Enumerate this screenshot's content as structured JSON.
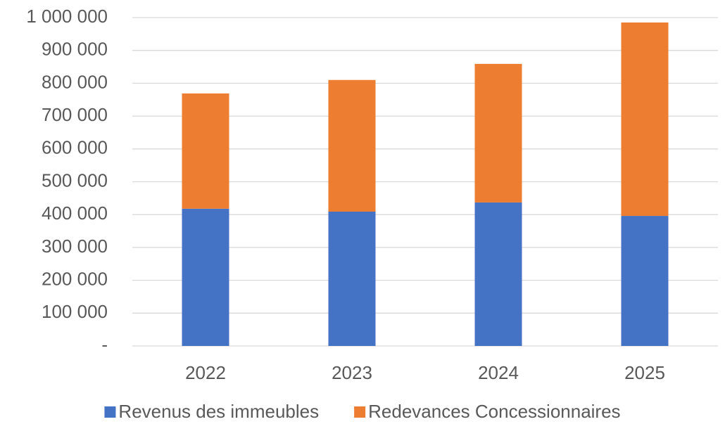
{
  "chart_data": {
    "type": "stacked_bar",
    "categories": [
      "2022",
      "2023",
      "2024",
      "2025"
    ],
    "series": [
      {
        "name": "Revenus des immeubles",
        "color": "#4472c4",
        "values": [
          418000,
          409000,
          437000,
          396000
        ]
      },
      {
        "name": "Redevances Concessionnaires",
        "color": "#ed7d31",
        "values": [
          351000,
          401000,
          422000,
          589000
        ]
      }
    ],
    "ylim": [
      0,
      1000000
    ],
    "yticks": [
      {
        "value": 0,
        "label": "-"
      },
      {
        "value": 100000,
        "label": "100 000"
      },
      {
        "value": 200000,
        "label": "200 000"
      },
      {
        "value": 300000,
        "label": "300 000"
      },
      {
        "value": 400000,
        "label": "400 000"
      },
      {
        "value": 500000,
        "label": "500 000"
      },
      {
        "value": 600000,
        "label": "600 000"
      },
      {
        "value": 700000,
        "label": "700 000"
      },
      {
        "value": 800000,
        "label": "800 000"
      },
      {
        "value": 900000,
        "label": "900 000"
      },
      {
        "value": 1000000,
        "label": "1 000 000"
      }
    ],
    "grid": true,
    "legend": "bottom"
  }
}
